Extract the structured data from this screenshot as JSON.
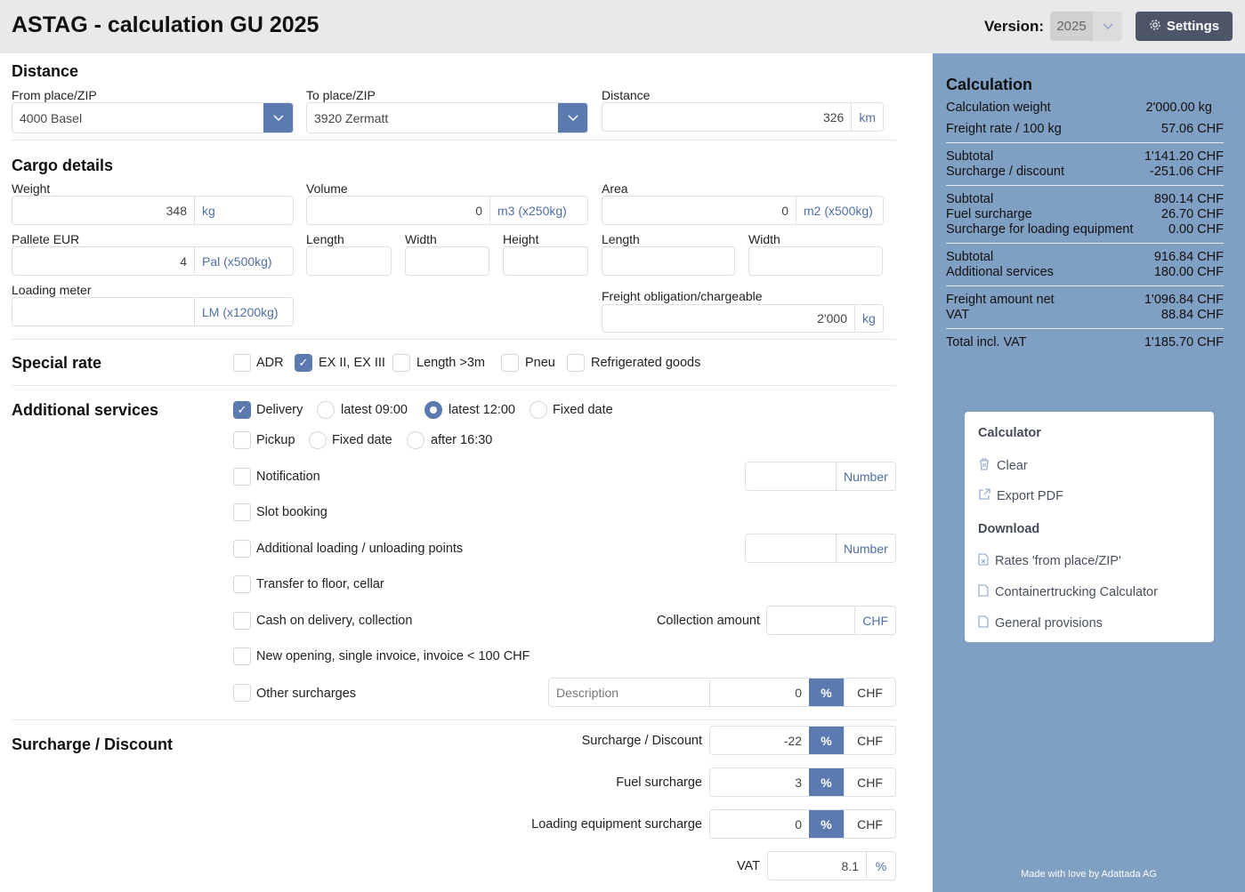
{
  "header": {
    "title": "ASTAG - calculation GU 2025",
    "version_label": "Version:",
    "version_value": "2025",
    "settings_label": "Settings"
  },
  "distance": {
    "heading": "Distance",
    "from_label": "From place/ZIP",
    "from_value": "4000 Basel",
    "to_label": "To place/ZIP",
    "to_value": "3920 Zermatt",
    "distance_label": "Distance",
    "distance_value": "326",
    "distance_unit": "km"
  },
  "cargo": {
    "heading": "Cargo details",
    "weight_label": "Weight",
    "weight_value": "348",
    "weight_unit": "kg",
    "volume_label": "Volume",
    "volume_value": "0",
    "volume_unit": "m3 (x250kg)",
    "area_label": "Area",
    "area_value": "0",
    "area_unit": "m2 (x500kg)",
    "pallet_label": "Pallete EUR",
    "pallet_value": "4",
    "pallet_unit": "Pal (x500kg)",
    "length_label": "Length",
    "width_label": "Width",
    "height_label": "Height",
    "area_length_label": "Length",
    "area_width_label": "Width",
    "loading_meter_label": "Loading meter",
    "loading_meter_unit": "LM (x1200kg)",
    "freight_label": "Freight obligation/chargeable",
    "freight_value": "2'000",
    "freight_unit": "kg"
  },
  "special_rate": {
    "heading": "Special rate",
    "options": [
      {
        "label": "ADR",
        "checked": false
      },
      {
        "label": "EX II, EX III",
        "checked": true
      },
      {
        "label": "Length >3m",
        "checked": false
      },
      {
        "label": "Pneu",
        "checked": false
      },
      {
        "label": "Refrigerated goods",
        "checked": false
      }
    ]
  },
  "additional": {
    "heading": "Additional services",
    "delivery": "Delivery",
    "delivery_opts": [
      "latest 09:00",
      "latest 12:00",
      "Fixed date"
    ],
    "delivery_selected": "latest 12:00",
    "pickup": "Pickup",
    "pickup_opts": [
      "Fixed date",
      "after 16:30"
    ],
    "notification": "Notification",
    "number_unit": "Number",
    "slot_booking": "Slot booking",
    "additional_points": "Additional loading / unloading points",
    "transfer": "Transfer to floor, cellar",
    "cod": "Cash on delivery, collection",
    "collection_amount_label": "Collection amount",
    "chf": "CHF",
    "new_opening": "New opening, single invoice, invoice < 100 CHF",
    "other": "Other surcharges",
    "description_placeholder": "Description",
    "other_value": "0",
    "pct": "%"
  },
  "surcharge": {
    "heading": "Surcharge / Discount",
    "rows": [
      {
        "label": "Surcharge / Discount",
        "value": "-22"
      },
      {
        "label": "Fuel surcharge",
        "value": "3"
      },
      {
        "label": "Loading equipment surcharge",
        "value": "0"
      }
    ],
    "vat_label": "VAT",
    "vat_value": "8.1",
    "vat_unit": "%"
  },
  "calculation": {
    "heading": "Calculation",
    "rows": [
      {
        "label": "Calculation weight",
        "value": "2'000.00 kg"
      },
      {
        "label": "Freight rate / 100 kg",
        "value": "57.06 CHF"
      },
      {
        "label": "Subtotal",
        "value": "1'141.20 CHF"
      },
      {
        "label": "Surcharge / discount",
        "value": "-251.06 CHF"
      },
      {
        "label": "Subtotal",
        "value": "890.14 CHF"
      },
      {
        "label": "Fuel surcharge",
        "value": "26.70 CHF"
      },
      {
        "label": "Surcharge for loading equipment",
        "value": "0.00 CHF"
      },
      {
        "label": "Subtotal",
        "value": "916.84 CHF"
      },
      {
        "label": "Additional services",
        "value": "180.00 CHF"
      },
      {
        "label": "Freight amount net",
        "value": "1'096.84 CHF"
      },
      {
        "label": "VAT",
        "value": "88.84 CHF"
      },
      {
        "label": "Total incl. VAT",
        "value": "1'185.70 CHF"
      }
    ]
  },
  "menu": {
    "calculator_heading": "Calculator",
    "clear": "Clear",
    "export_pdf": "Export PDF",
    "download_heading": "Download",
    "rates": "Rates 'from place/ZIP'",
    "containertrucking": "Containertrucking Calculator",
    "general_provisions": "General provisions"
  },
  "footer": "Made with love by Adattada AG",
  "colors": {
    "accent": "#5b7bb0",
    "panel": "#7f9fc3",
    "settings_button": "#4d5669",
    "highlight_green": "#ccf7cc"
  }
}
